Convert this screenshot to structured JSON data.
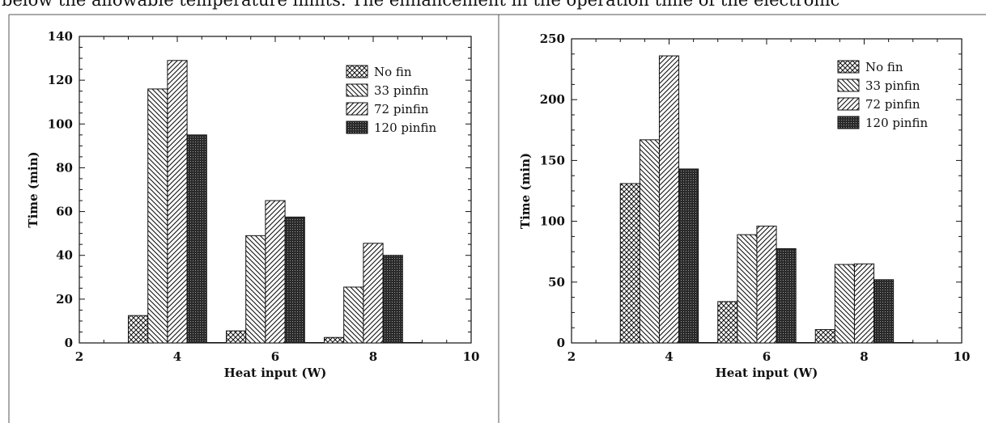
{
  "caption": "below the allowable temperature limits. The enhancement in the operation time of the electronic",
  "chart_data": [
    {
      "type": "bar",
      "title": "",
      "xlabel": "Heat input (W)",
      "ylabel": "Time (min)",
      "xlim": [
        2,
        10
      ],
      "ylim": [
        0,
        140
      ],
      "xticks": [
        2,
        4,
        6,
        8,
        10
      ],
      "yticks": [
        0,
        20,
        40,
        60,
        80,
        100,
        120,
        140
      ],
      "categories": [
        4,
        6,
        8
      ],
      "legend_position": "top-right",
      "grid": false,
      "series": [
        {
          "name": "No fin",
          "pattern": "crosshatch",
          "values": [
            12.5,
            5.5,
            2.5
          ]
        },
        {
          "name": "33 pinfin",
          "pattern": "back-diagonal",
          "values": [
            116,
            49,
            25.5
          ]
        },
        {
          "name": "72 pinfin",
          "pattern": "forward-diagonal",
          "values": [
            129,
            65,
            45.5
          ]
        },
        {
          "name": "120 pinfin",
          "pattern": "dense-dots",
          "values": [
            95,
            57.5,
            40
          ]
        }
      ]
    },
    {
      "type": "bar",
      "title": "",
      "xlabel": "Heat input (W)",
      "ylabel": "Time (min)",
      "xlim": [
        2,
        10
      ],
      "ylim": [
        0,
        250
      ],
      "xticks": [
        2,
        4,
        6,
        8,
        10
      ],
      "yticks": [
        0,
        50,
        100,
        150,
        200,
        250
      ],
      "categories": [
        4,
        6,
        8
      ],
      "legend_position": "top-right",
      "grid": false,
      "series": [
        {
          "name": "No fin",
          "pattern": "crosshatch",
          "values": [
            131,
            34,
            11
          ]
        },
        {
          "name": "33 pinfin",
          "pattern": "back-diagonal",
          "values": [
            167,
            89,
            64.5
          ]
        },
        {
          "name": "72 pinfin",
          "pattern": "forward-diagonal",
          "values": [
            236,
            96,
            65
          ]
        },
        {
          "name": "120 pinfin",
          "pattern": "dense-dots",
          "values": [
            143,
            77.5,
            52
          ]
        }
      ]
    }
  ]
}
